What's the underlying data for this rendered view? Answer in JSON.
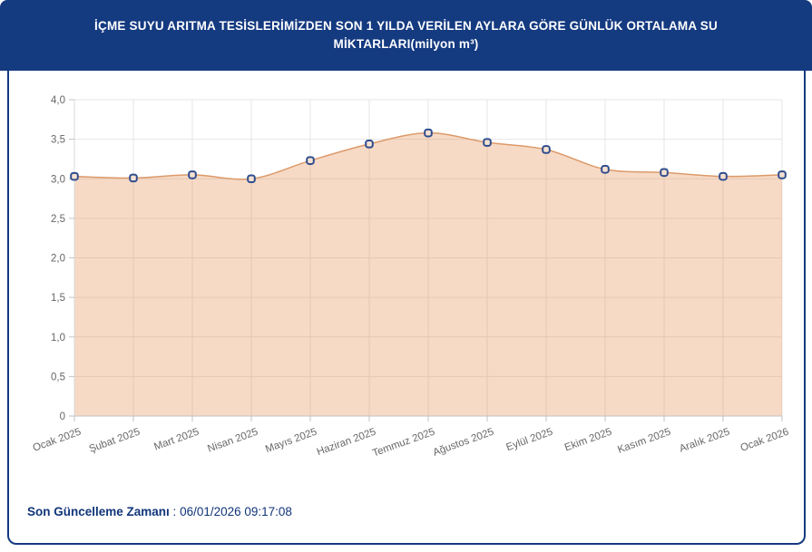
{
  "header": {
    "title": "İÇME SUYU ARITMA TESİSLERİMİZDEN SON 1 YILDA VERİLEN AYLARA GÖRE GÜNLÜK ORTALAMA SU MİKTARLARI(milyon m³)"
  },
  "footer": {
    "label": "Son Güncelleme Zamanı",
    "separator": " : ",
    "value": "06/01/2026 09:17:08"
  },
  "colors": {
    "navy": "#143a80",
    "line": "#dc9a6a",
    "area_fill": "rgba(224,134,66,0.30)",
    "marker_fill": "#f7e2d2",
    "marker_stroke": "#2f4d8e",
    "grid": "#e6e6e6",
    "axis_x": "#c2c2c2",
    "axis_y": "#d8d8d8",
    "tick": "#c2c2c2",
    "label": "#666666"
  },
  "chart_data": {
    "type": "area",
    "title": "İÇME SUYU ARITMA TESİSLERİMİZDEN SON 1 YILDA VERİLEN AYLARA GÖRE GÜNLÜK ORTALAMA SU MİKTARLARI(milyon m³)",
    "categories": [
      "Ocak 2025",
      "Şubat 2025",
      "Mart 2025",
      "Nisan 2025",
      "Mayıs 2025",
      "Haziran 2025",
      "Temmuz 2025",
      "Ağustos 2025",
      "Eylül 2025",
      "Ekim 2025",
      "Kasım 2025",
      "Aralık 2025",
      "Ocak 2026"
    ],
    "values": [
      3.03,
      3.01,
      3.05,
      3.0,
      3.23,
      3.44,
      3.58,
      3.46,
      3.37,
      3.12,
      3.08,
      3.03,
      3.05
    ],
    "xlabel": "",
    "ylabel": "",
    "ylim": [
      0,
      4
    ],
    "y_ticks": [
      {
        "value": 4.0,
        "label": "4,0"
      },
      {
        "value": 3.5,
        "label": "3,5"
      },
      {
        "value": 3.0,
        "label": "3,0"
      },
      {
        "value": 2.5,
        "label": "2,5"
      },
      {
        "value": 2.0,
        "label": "2,0"
      },
      {
        "value": 1.5,
        "label": "1,5"
      },
      {
        "value": 1.0,
        "label": "1,0"
      },
      {
        "value": 0.5,
        "label": "0,5"
      },
      {
        "value": 0,
        "label": "0"
      }
    ],
    "grid": true,
    "legend": false,
    "x_label_rotation": -20,
    "marker": "rounded-square"
  }
}
